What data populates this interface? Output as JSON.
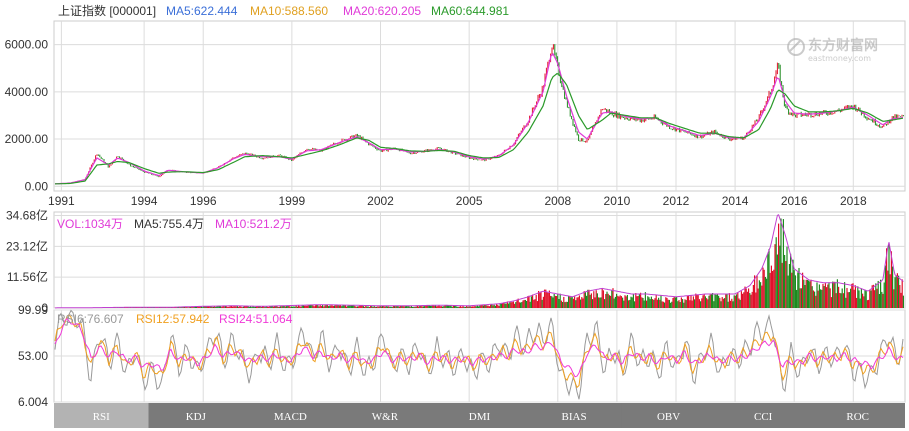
{
  "colors": {
    "ma5": "#3b6fd8",
    "ma10": "#e0a020",
    "ma20": "#e03ad8",
    "ma60": "#2a9a2a",
    "up": "#e0102a",
    "down": "#1e8a1e",
    "rsi6": "#999999",
    "rsi12": "#f0a020",
    "rsi24": "#f03ad8",
    "grid": "#dcdcdc",
    "tab_bg": "#7a7a7a",
    "tab_active": "#b3b3b3"
  },
  "watermark": {
    "line1": "东方财富网",
    "line2": "eastmoney.com"
  },
  "chart_data": [
    {
      "type": "line",
      "panel": "price",
      "title": "上证指数 [000001]",
      "legend": [
        {
          "name": "MA5",
          "label": "MA5:622.444",
          "color": "#3b6fd8"
        },
        {
          "name": "MA10",
          "label": "MA10:588.560",
          "color": "#e0a020"
        },
        {
          "name": "MA20",
          "label": "MA20:620.205",
          "color": "#e03ad8"
        },
        {
          "name": "MA60",
          "label": "MA60:644.981",
          "color": "#2a9a2a"
        }
      ],
      "y_ticks": [
        "6000.00",
        "4000.00",
        "2000.00",
        "0.00"
      ],
      "y_tick_values": [
        6000,
        4000,
        2000,
        0
      ],
      "ylim": [
        -200,
        7000
      ],
      "x_ticks": [
        "1991",
        "1994",
        "1996",
        "1999",
        "2002",
        "2005",
        "2008",
        "2010",
        "2012",
        "2014",
        "2016",
        "2018"
      ],
      "x_tick_values": [
        1991.2,
        1994,
        1996,
        1999,
        2002,
        2005,
        2008,
        2010,
        2012,
        2014,
        2016,
        2018
      ],
      "xlim": [
        1990.95,
        2019.75
      ],
      "x": [
        1990.95,
        1991.5,
        1992.0,
        1992.4,
        1992.8,
        1993.1,
        1993.5,
        1994.0,
        1994.5,
        1994.8,
        1995.3,
        1996.0,
        1996.5,
        1997.0,
        1997.4,
        1998.0,
        1998.6,
        1999.0,
        1999.5,
        2000.0,
        2000.6,
        2001.2,
        2001.6,
        2002.0,
        2002.5,
        2003.0,
        2003.5,
        2004.0,
        2004.5,
        2005.0,
        2005.5,
        2006.0,
        2006.5,
        2007.0,
        2007.5,
        2007.8,
        2008.0,
        2008.3,
        2008.7,
        2009.0,
        2009.5,
        2009.8,
        2010.3,
        2010.8,
        2011.3,
        2011.8,
        2012.3,
        2012.8,
        2013.3,
        2013.8,
        2014.3,
        2014.8,
        2015.2,
        2015.45,
        2015.7,
        2016.0,
        2016.5,
        2017.0,
        2017.5,
        2018.0,
        2018.5,
        2019.0,
        2019.3,
        2019.75
      ],
      "series": [
        {
          "name": "指数",
          "kind": "candles",
          "values": [
            100,
            150,
            300,
            1400,
            800,
            1300,
            900,
            600,
            400,
            700,
            600,
            550,
            800,
            1200,
            1400,
            1200,
            1300,
            1100,
            1600,
            1500,
            1900,
            2150,
            1800,
            1500,
            1600,
            1400,
            1500,
            1600,
            1400,
            1200,
            1100,
            1300,
            1800,
            2800,
            4200,
            6000,
            5000,
            3500,
            2000,
            1900,
            3300,
            3100,
            2900,
            2800,
            2900,
            2500,
            2300,
            2100,
            2300,
            2000,
            2050,
            2900,
            4000,
            5100,
            3300,
            3000,
            3050,
            3100,
            3200,
            3400,
            2900,
            2500,
            2900,
            2950
          ]
        },
        {
          "name": "MA20",
          "kind": "line",
          "color": "#e03ad8",
          "values": [
            100,
            140,
            280,
            1200,
            900,
            1200,
            1000,
            650,
            450,
            680,
            620,
            560,
            780,
            1150,
            1350,
            1250,
            1250,
            1150,
            1500,
            1550,
            1850,
            2100,
            1850,
            1550,
            1580,
            1450,
            1480,
            1550,
            1450,
            1250,
            1150,
            1280,
            1750,
            2700,
            4000,
            5700,
            5200,
            3800,
            2300,
            2000,
            3100,
            3150,
            2950,
            2850,
            2900,
            2550,
            2350,
            2150,
            2250,
            2050,
            2050,
            2750,
            3800,
            4700,
            3600,
            3100,
            3050,
            3100,
            3200,
            3350,
            3000,
            2600,
            2850,
            2920
          ]
        },
        {
          "name": "MA60",
          "kind": "line",
          "color": "#2a9a2a",
          "values": [
            100,
            120,
            220,
            900,
            950,
            1050,
            1000,
            750,
            550,
            600,
            620,
            580,
            700,
            1000,
            1250,
            1300,
            1250,
            1200,
            1350,
            1500,
            1750,
            2050,
            1950,
            1650,
            1600,
            1500,
            1480,
            1520,
            1480,
            1300,
            1200,
            1220,
            1550,
            2300,
            3400,
            4600,
            4800,
            4300,
            3000,
            2400,
            2800,
            3100,
            3000,
            2900,
            2900,
            2650,
            2450,
            2250,
            2250,
            2100,
            2050,
            2400,
            3300,
            4100,
            3900,
            3400,
            3150,
            3150,
            3200,
            3300,
            3100,
            2750,
            2800,
            2900
          ]
        }
      ]
    },
    {
      "type": "bar",
      "panel": "volume",
      "legend": [
        {
          "name": "VOL",
          "label": "VOL:1034万",
          "color": "#e03ad8"
        },
        {
          "name": "MA5",
          "label": "MA5:755.4万",
          "color": "#333333"
        },
        {
          "name": "MA10",
          "label": "MA10:521.2万",
          "color": "#e03ad8"
        }
      ],
      "y_ticks": [
        "34.68亿",
        "23.12亿",
        "11.56亿",
        "0"
      ],
      "y_tick_values": [
        34.68,
        23.12,
        11.56,
        0
      ],
      "ylim": [
        0,
        36
      ],
      "unit": "亿",
      "x": [
        1990.95,
        1992.0,
        1993.0,
        1994.0,
        1995.0,
        1996.0,
        1997.0,
        1998.0,
        1999.0,
        2000.0,
        2001.0,
        2002.0,
        2003.0,
        2004.0,
        2005.0,
        2006.0,
        2006.5,
        2007.0,
        2007.5,
        2008.0,
        2008.5,
        2009.0,
        2009.5,
        2010.0,
        2010.5,
        2011.0,
        2012.0,
        2013.0,
        2014.0,
        2014.5,
        2014.9,
        2015.2,
        2015.45,
        2015.7,
        2016.0,
        2016.5,
        2017.0,
        2017.5,
        2018.0,
        2018.5,
        2019.0,
        2019.2,
        2019.4,
        2019.75
      ],
      "values": [
        0.05,
        0.1,
        0.2,
        0.3,
        0.3,
        0.6,
        0.8,
        0.6,
        0.9,
        1.2,
        1.0,
        0.8,
        0.8,
        1.0,
        0.8,
        1.5,
        2.5,
        4,
        6,
        5,
        4,
        6,
        7,
        6,
        5,
        5,
        4,
        5,
        5,
        8,
        14,
        22,
        34,
        26,
        14,
        10,
        9,
        9,
        8,
        6,
        10,
        24,
        12,
        9
      ]
    },
    {
      "type": "line",
      "panel": "rsi",
      "legend": [
        {
          "name": "RSI6",
          "label": "RSI6:76.607",
          "color": "#999999"
        },
        {
          "name": "RSI12",
          "label": "RSI12:57.942",
          "color": "#f0a020"
        },
        {
          "name": "RSI24",
          "label": "RSI24:51.064",
          "color": "#f03ad8"
        }
      ],
      "y_ticks": [
        "99.99",
        "53.00",
        "6.004"
      ],
      "y_tick_values": [
        99.99,
        53.0,
        6.004
      ],
      "ylim": [
        6.004,
        99.99
      ],
      "x": [
        1990.95,
        1991.3,
        1991.6,
        1991.9,
        1992.2,
        1992.5,
        1992.8,
        1993.1,
        1993.4,
        1993.7,
        1994.0,
        1994.3,
        1994.6,
        1994.9,
        1995.2,
        1995.5,
        1995.8,
        1996.1,
        1996.4,
        1996.7,
        1997.0,
        1997.3,
        1997.6,
        1997.9,
        1998.2,
        1998.5,
        1998.8,
        1999.1,
        1999.4,
        1999.7,
        2000.0,
        2000.3,
        2000.6,
        2000.9,
        2001.2,
        2001.5,
        2001.8,
        2002.1,
        2002.4,
        2002.7,
        2003.0,
        2003.3,
        2003.6,
        2003.9,
        2004.2,
        2004.5,
        2004.8,
        2005.1,
        2005.4,
        2005.7,
        2006.0,
        2006.3,
        2006.6,
        2006.9,
        2007.2,
        2007.5,
        2007.8,
        2008.1,
        2008.4,
        2008.7,
        2009.0,
        2009.3,
        2009.6,
        2009.9,
        2010.2,
        2010.5,
        2010.8,
        2011.1,
        2011.4,
        2011.7,
        2012.0,
        2012.3,
        2012.6,
        2012.9,
        2013.2,
        2013.5,
        2013.8,
        2014.1,
        2014.4,
        2014.7,
        2015.0,
        2015.3,
        2015.6,
        2015.9,
        2016.2,
        2016.5,
        2016.8,
        2017.1,
        2017.4,
        2017.7,
        2018.0,
        2018.3,
        2018.6,
        2018.9,
        2019.2,
        2019.5,
        2019.75
      ],
      "series": [
        {
          "name": "RSI6",
          "values": [
            70,
            95,
            92,
            85,
            30,
            80,
            45,
            70,
            35,
            60,
            25,
            40,
            20,
            75,
            40,
            60,
            35,
            55,
            80,
            45,
            70,
            50,
            35,
            60,
            45,
            65,
            40,
            55,
            80,
            50,
            70,
            45,
            65,
            40,
            60,
            35,
            50,
            75,
            40,
            55,
            45,
            65,
            35,
            60,
            50,
            40,
            55,
            35,
            50,
            45,
            65,
            55,
            75,
            60,
            80,
            70,
            85,
            30,
            25,
            15,
            70,
            80,
            40,
            60,
            35,
            70,
            45,
            55,
            35,
            60,
            40,
            70,
            30,
            55,
            65,
            35,
            55,
            50,
            60,
            75,
            80,
            85,
            20,
            55,
            35,
            60,
            45,
            55,
            50,
            65,
            40,
            35,
            30,
            55,
            75,
            45,
            77
          ]
        },
        {
          "name": "RSI12",
          "values": [
            65,
            92,
            90,
            80,
            40,
            70,
            50,
            62,
            42,
            55,
            35,
            42,
            30,
            65,
            45,
            55,
            42,
            52,
            70,
            50,
            63,
            52,
            42,
            55,
            48,
            58,
            45,
            52,
            70,
            52,
            62,
            48,
            58,
            45,
            55,
            42,
            50,
            65,
            45,
            52,
            48,
            58,
            42,
            55,
            50,
            45,
            52,
            42,
            50,
            48,
            58,
            54,
            66,
            58,
            70,
            66,
            76,
            40,
            32,
            25,
            62,
            72,
            46,
            56,
            42,
            62,
            48,
            53,
            42,
            56,
            45,
            62,
            38,
            53,
            58,
            42,
            53,
            50,
            56,
            66,
            72,
            76,
            32,
            50,
            42,
            56,
            48,
            53,
            50,
            58,
            45,
            42,
            38,
            52,
            66,
            48,
            58
          ]
        },
        {
          "name": "RSI24",
          "values": [
            60,
            88,
            88,
            78,
            50,
            62,
            53,
            58,
            48,
            52,
            42,
            45,
            38,
            58,
            48,
            52,
            46,
            51,
            62,
            52,
            58,
            53,
            47,
            52,
            50,
            54,
            48,
            51,
            62,
            53,
            57,
            50,
            54,
            48,
            52,
            46,
            50,
            58,
            48,
            51,
            49,
            54,
            46,
            52,
            50,
            48,
            51,
            46,
            50,
            49,
            54,
            53,
            60,
            56,
            63,
            62,
            68,
            48,
            40,
            33,
            56,
            65,
            50,
            53,
            47,
            57,
            50,
            52,
            46,
            53,
            48,
            56,
            44,
            51,
            54,
            47,
            51,
            50,
            53,
            60,
            66,
            68,
            42,
            48,
            46,
            53,
            50,
            52,
            50,
            54,
            48,
            46,
            43,
            50,
            59,
            50,
            51
          ]
        }
      ]
    }
  ],
  "indicator_tabs": [
    "RSI",
    "KDJ",
    "MACD",
    "W&R",
    "DMI",
    "BIAS",
    "OBV",
    "CCI",
    "ROC"
  ],
  "active_tab": "RSI"
}
